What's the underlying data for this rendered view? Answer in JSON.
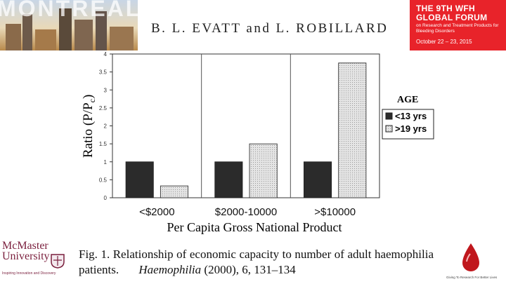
{
  "banner": {
    "title": "MONTREAL"
  },
  "authors": "B. L. EVATT and L. ROBILLARD",
  "wfh_badge": {
    "line1": "THE 9TH WFH",
    "line2": "GLOBAL FORUM",
    "line3": "on Research and Treatment Products for Bleeding Disorders",
    "line4": "October 22 – 23, 2015",
    "color": "#e8232a"
  },
  "chart_data": {
    "type": "bar",
    "ylabel": "Ratio (P/P",
    "ylabel_sub": "c",
    "ylabel_end": ")",
    "xlabel": "Per Capita Gross National Product",
    "categories": [
      "<$2000",
      "$2000-10000",
      ">$10000"
    ],
    "series": [
      {
        "name": "<13 yrs",
        "values": [
          1.0,
          1.0,
          1.0
        ],
        "color": "#2b2b2b"
      },
      {
        "name": ">19 yrs",
        "values": [
          0.33,
          1.5,
          3.75
        ],
        "color": "#cfcfcf"
      }
    ],
    "ylim": [
      0,
      4
    ],
    "yticks": [
      "0",
      "0.5",
      "1",
      "1.5",
      "2",
      "2.5",
      "3",
      "3.5",
      "4"
    ],
    "legend_title": "AGE",
    "legend_position": "right",
    "grid": "vertical"
  },
  "caption": {
    "label": "Fig. 1.",
    "text": "Relationship of economic capacity to number of adult haemophilia patients.",
    "journal": "Haemophilia",
    "citation": "(2000), 6, 131–134"
  },
  "mcmaster": {
    "name1": "McMaster",
    "name2": "University",
    "tagline": "Inspiring Innovation and Discovery",
    "color": "#7a1f3d"
  },
  "drop_logo": {
    "tagline": "Giving To Research For Better Lives"
  }
}
